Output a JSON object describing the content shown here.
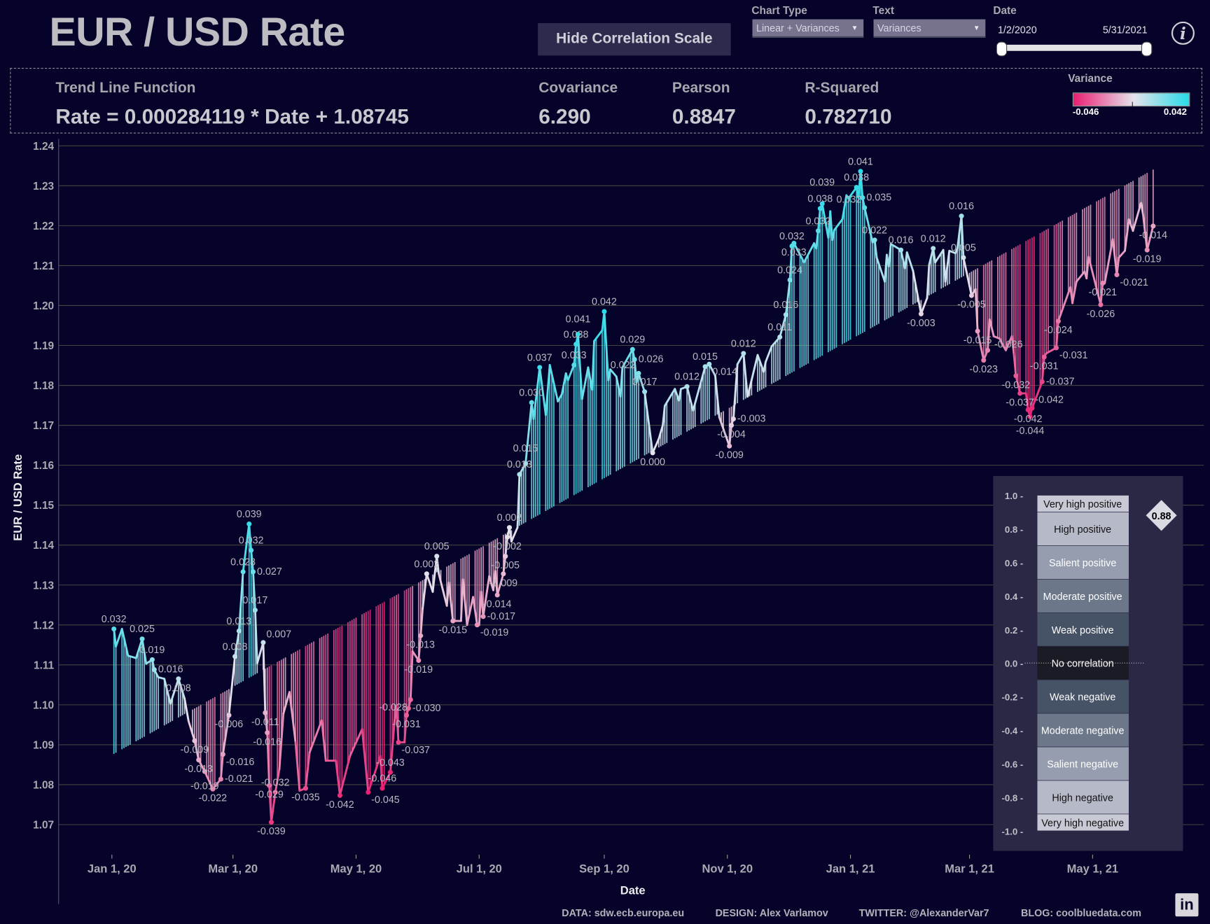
{
  "header": {
    "title": "EUR / USD Rate",
    "hide_button": "Hide Correlation Scale",
    "chart_type_label": "Chart Type",
    "chart_type_value": "Linear + Variances",
    "text_label": "Text",
    "text_value": "Variances",
    "date_label": "Date",
    "date_start": "1/2/2020",
    "date_end": "5/31/2021",
    "info_icon": "i"
  },
  "stats": {
    "trend_label": "Trend Line Function",
    "trend_value": "Rate = 0.000284119 * Date + 1.08745",
    "covariance_label": "Covariance",
    "covariance_value": "6.290",
    "pearson_label": "Pearson",
    "pearson_value": "0.8847",
    "rsquared_label": "R-Squared",
    "rsquared_value": "0.782710",
    "variance_label": "Variance",
    "variance_min": "-0.046",
    "variance_max": "0.042"
  },
  "colors": {
    "negative": "#e91e72",
    "neutral": "#e6e3ec",
    "positive": "#26dbe8",
    "background": "#06032a"
  },
  "footer": {
    "data": "DATA: sdw.ecb.europa.eu",
    "design": "DESIGN: Alex Varlamov",
    "twitter": "TWITTER: @AlexanderVar7",
    "blog": "BLOG: coolbluedata.com",
    "linkedin": "in"
  },
  "chart_data": {
    "type": "line",
    "title": "EUR / USD Rate",
    "xlabel": "Date",
    "ylabel": "EUR / USD Rate",
    "x_unit": "days since Jan 1, 2020",
    "xlim": [
      0,
      516
    ],
    "ylim": [
      1.07,
      1.24
    ],
    "yticks": [
      "1.07",
      "1.08",
      "1.09",
      "1.10",
      "1.11",
      "1.12",
      "1.13",
      "1.14",
      "1.15",
      "1.16",
      "1.17",
      "1.18",
      "1.19",
      "1.20",
      "1.21",
      "1.22",
      "1.23",
      "1.24"
    ],
    "xticks": [
      {
        "day": 0,
        "label": "Jan 1, 20"
      },
      {
        "day": 60,
        "label": "Mar 1, 20"
      },
      {
        "day": 121,
        "label": "May 1, 20"
      },
      {
        "day": 182,
        "label": "Jul 1, 20"
      },
      {
        "day": 244,
        "label": "Sep 1, 20"
      },
      {
        "day": 305,
        "label": "Nov 1, 20"
      },
      {
        "day": 366,
        "label": "Jan 1, 21"
      },
      {
        "day": 425,
        "label": "Mar 1, 21"
      },
      {
        "day": 486,
        "label": "May 1, 21"
      }
    ],
    "grid": true,
    "trend": {
      "slope": 0.000284119,
      "intercept": 1.08745
    },
    "points": [
      [
        1,
        1.119,
        "0.032"
      ],
      [
        2,
        1.1146,
        ""
      ],
      [
        5,
        1.119,
        ""
      ],
      [
        8,
        1.1123,
        ""
      ],
      [
        12,
        1.1117,
        ""
      ],
      [
        15,
        1.1165,
        "0.025"
      ],
      [
        17,
        1.1103,
        ""
      ],
      [
        20,
        1.1113,
        "0.019"
      ],
      [
        21,
        1.1088,
        "0.016"
      ],
      [
        23,
        1.1069,
        ""
      ],
      [
        26,
        1.1065,
        ""
      ],
      [
        29,
        1.1003,
        ""
      ],
      [
        33,
        1.1065,
        "0.008"
      ],
      [
        36,
        1.1016,
        ""
      ],
      [
        38,
        1.0959,
        ""
      ],
      [
        41,
        1.091,
        "-0.009"
      ],
      [
        43,
        1.0862,
        "-0.013"
      ],
      [
        46,
        1.0833,
        "-0.019"
      ],
      [
        50,
        1.0789,
        "-0.022"
      ],
      [
        54,
        1.0814,
        "-0.021"
      ],
      [
        55,
        1.0876,
        "-0.016"
      ],
      [
        58,
        1.0974,
        "-0.006"
      ],
      [
        61,
        1.1121,
        "0.008"
      ],
      [
        63,
        1.1185,
        "0.013"
      ],
      [
        65,
        1.1333,
        "0.028"
      ],
      [
        68,
        1.1453,
        "0.039"
      ],
      [
        69,
        1.1387,
        "0.032"
      ],
      [
        70,
        1.1333,
        "0.027"
      ],
      [
        71,
        1.1237,
        "0.017"
      ],
      [
        72,
        1.1104,
        ""
      ],
      [
        75,
        1.1156,
        "0.007"
      ],
      [
        76,
        1.098,
        "-0.011"
      ],
      [
        77,
        1.093,
        "-0.016"
      ],
      [
        78,
        1.0798,
        "-0.029"
      ],
      [
        79,
        1.0706,
        "-0.039"
      ],
      [
        81,
        1.0781,
        "-0.032"
      ],
      [
        83,
        1.0839,
        ""
      ],
      [
        85,
        1.0978,
        ""
      ],
      [
        88,
        1.1032,
        ""
      ],
      [
        91,
        1.0906,
        ""
      ],
      [
        93,
        1.0785,
        ""
      ],
      [
        96,
        1.0791,
        "-0.035"
      ],
      [
        98,
        1.0881,
        ""
      ],
      [
        104,
        1.0961,
        ""
      ],
      [
        106,
        1.086,
        ""
      ],
      [
        111,
        1.086,
        ""
      ],
      [
        113,
        1.0773,
        "-0.042"
      ],
      [
        118,
        1.0872,
        ""
      ],
      [
        124,
        1.0939,
        ""
      ],
      [
        127,
        1.0781,
        "-0.045"
      ],
      [
        130,
        1.0825,
        ""
      ],
      [
        133,
        1.0872,
        ""
      ],
      [
        134,
        1.0791,
        "-0.046"
      ],
      [
        138,
        1.0831,
        "-0.043"
      ],
      [
        140,
        1.0955,
        ""
      ],
      [
        141,
        1.0997,
        ""
      ],
      [
        142,
        1.0906,
        "-0.037"
      ],
      [
        145,
        1.0906,
        ""
      ],
      [
        146,
        1.0974,
        "-0.031"
      ],
      [
        147,
        1.0991,
        "-0.030"
      ],
      [
        148,
        1.1013,
        "-0.028"
      ],
      [
        149,
        1.1134,
        ""
      ],
      [
        152,
        1.1111,
        "-0.019"
      ],
      [
        153,
        1.1173,
        "-0.013"
      ],
      [
        154,
        1.1241,
        ""
      ],
      [
        156,
        1.1328,
        "0.002"
      ],
      [
        159,
        1.1283,
        ""
      ],
      [
        161,
        1.1372,
        "0.005"
      ],
      [
        162,
        1.1328,
        ""
      ],
      [
        166,
        1.1248,
        ""
      ],
      [
        167,
        1.1306,
        ""
      ],
      [
        169,
        1.121,
        "-0.015"
      ],
      [
        173,
        1.121,
        ""
      ],
      [
        174,
        1.1314,
        ""
      ],
      [
        176,
        1.12,
        ""
      ],
      [
        179,
        1.127,
        ""
      ],
      [
        181,
        1.12,
        "-0.019"
      ],
      [
        182,
        1.12,
        ""
      ],
      [
        183,
        1.1283,
        ""
      ],
      [
        184,
        1.1221,
        "-0.017"
      ],
      [
        187,
        1.1322,
        ""
      ],
      [
        189,
        1.1287,
        ""
      ],
      [
        190,
        1.1335,
        ""
      ],
      [
        191,
        1.1275,
        "-0.014"
      ],
      [
        194,
        1.1328,
        "-0.009"
      ],
      [
        195,
        1.1372,
        "-0.005"
      ],
      [
        196,
        1.142,
        "-0.002"
      ],
      [
        197,
        1.1444,
        "0.002"
      ],
      [
        198,
        1.1409,
        ""
      ],
      [
        201,
        1.1444,
        ""
      ],
      [
        202,
        1.1577,
        "0.013"
      ],
      [
        205,
        1.1604,
        "0.015"
      ],
      [
        208,
        1.1757,
        "0.030"
      ],
      [
        209,
        1.1716,
        ""
      ],
      [
        212,
        1.1845,
        "0.037"
      ],
      [
        215,
        1.1726,
        ""
      ],
      [
        217,
        1.1851,
        ""
      ],
      [
        221,
        1.176,
        ""
      ],
      [
        223,
        1.1778,
        ""
      ],
      [
        225,
        1.183,
        ""
      ],
      [
        226,
        1.1813,
        ""
      ],
      [
        229,
        1.1851,
        "0.033"
      ],
      [
        230,
        1.1903,
        "0.038"
      ],
      [
        231,
        1.1928,
        "0.041"
      ],
      [
        233,
        1.1766,
        ""
      ],
      [
        236,
        1.1845,
        ""
      ],
      [
        238,
        1.1789,
        ""
      ],
      [
        239,
        1.1911,
        ""
      ],
      [
        243,
        1.1938,
        ""
      ],
      [
        244,
        1.1985,
        "0.042"
      ],
      [
        246,
        1.1813,
        ""
      ],
      [
        247,
        1.184,
        ""
      ],
      [
        250,
        1.1822,
        ""
      ],
      [
        252,
        1.1772,
        ""
      ],
      [
        253,
        1.1845,
        ""
      ],
      [
        258,
        1.189,
        "0.029"
      ],
      [
        259,
        1.1865,
        "0.026"
      ],
      [
        260,
        1.1807,
        ""
      ],
      [
        261,
        1.183,
        "0.022"
      ],
      [
        264,
        1.1784,
        "0.017"
      ],
      [
        268,
        1.1631,
        "0.000"
      ],
      [
        271,
        1.1666,
        ""
      ],
      [
        273,
        1.17,
        ""
      ],
      [
        274,
        1.1749,
        ""
      ],
      [
        279,
        1.1791,
        ""
      ],
      [
        281,
        1.1762,
        ""
      ],
      [
        282,
        1.1791,
        ""
      ],
      [
        285,
        1.1797,
        "0.012"
      ],
      [
        288,
        1.1737,
        ""
      ],
      [
        294,
        1.1847,
        "0.015"
      ],
      [
        296,
        1.1853,
        "0.014"
      ],
      [
        299,
        1.1824,
        ""
      ],
      [
        301,
        1.172,
        ""
      ],
      [
        306,
        1.1648,
        "-0.009"
      ],
      [
        307,
        1.17,
        "-0.004"
      ],
      [
        308,
        1.1716,
        "-0.003"
      ],
      [
        310,
        1.1853,
        ""
      ],
      [
        313,
        1.188,
        "0.012"
      ],
      [
        315,
        1.1772,
        ""
      ],
      [
        317,
        1.1813,
        ""
      ],
      [
        320,
        1.1876,
        ""
      ],
      [
        323,
        1.1834,
        ""
      ],
      [
        324,
        1.1859,
        ""
      ],
      [
        327,
        1.1898,
        ""
      ],
      [
        331,
        1.1921,
        "0.011"
      ],
      [
        334,
        1.1977,
        "0.016"
      ],
      [
        336,
        1.2064,
        "0.024"
      ],
      [
        337,
        1.2149,
        "0.032"
      ],
      [
        338,
        1.2156,
        "0.033"
      ],
      [
        343,
        1.2108,
        ""
      ],
      [
        348,
        1.2156,
        ""
      ],
      [
        349,
        1.2143,
        ""
      ],
      [
        350,
        1.2187,
        "0.032"
      ],
      [
        351,
        1.2243,
        "0.038"
      ],
      [
        352,
        1.2255,
        "0.039"
      ],
      [
        355,
        1.217,
        ""
      ],
      [
        356,
        1.2236,
        ""
      ],
      [
        357,
        1.2164,
        ""
      ],
      [
        358,
        1.2189,
        ""
      ],
      [
        362,
        1.2216,
        ""
      ],
      [
        364,
        1.2276,
        ""
      ],
      [
        365,
        1.2268,
        ""
      ],
      [
        369,
        1.2296,
        "0.038"
      ],
      [
        370,
        1.227,
        ""
      ],
      [
        371,
        1.2336,
        "0.041"
      ],
      [
        372,
        1.227,
        "0.035"
      ],
      [
        373,
        1.2245,
        "0.032"
      ],
      [
        377,
        1.2158,
        ""
      ],
      [
        378,
        1.2164,
        "0.022"
      ],
      [
        379,
        1.212,
        ""
      ],
      [
        383,
        1.206,
        ""
      ],
      [
        384,
        1.2127,
        ""
      ],
      [
        385,
        1.2098,
        ""
      ],
      [
        386,
        1.2154,
        ""
      ],
      [
        391,
        1.2139,
        "0.016"
      ],
      [
        393,
        1.2093,
        ""
      ],
      [
        394,
        1.2133,
        ""
      ],
      [
        397,
        1.2087,
        ""
      ],
      [
        401,
        1.1979,
        "-0.003"
      ],
      [
        404,
        1.2019,
        ""
      ],
      [
        405,
        1.2102,
        ""
      ],
      [
        407,
        1.2143,
        "0.012"
      ],
      [
        408,
        1.2108,
        ""
      ],
      [
        412,
        1.2139,
        ""
      ],
      [
        413,
        1.206,
        ""
      ],
      [
        415,
        1.2137,
        ""
      ],
      [
        418,
        1.2131,
        ""
      ],
      [
        419,
        1.2143,
        ""
      ],
      [
        421,
        1.2224,
        "0.016"
      ],
      [
        422,
        1.212,
        "0.005"
      ],
      [
        426,
        1.2025,
        "-0.005"
      ],
      [
        428,
        1.2041,
        ""
      ],
      [
        429,
        1.1936,
        "-0.015"
      ],
      [
        432,
        1.1863,
        "-0.023"
      ],
      [
        434,
        1.1888,
        "-0.026"
      ],
      [
        435,
        1.1965,
        ""
      ],
      [
        437,
        1.1923,
        ""
      ],
      [
        440,
        1.1917,
        ""
      ],
      [
        441,
        1.1905,
        ""
      ],
      [
        443,
        1.1888,
        ""
      ],
      [
        446,
        1.1923,
        ""
      ],
      [
        447,
        1.1878,
        ""
      ],
      [
        448,
        1.1824,
        "-0.032"
      ],
      [
        450,
        1.178,
        "-0.037"
      ],
      [
        453,
        1.178,
        ""
      ],
      [
        454,
        1.1739,
        "-0.042"
      ],
      [
        455,
        1.1722,
        "-0.044"
      ],
      [
        456,
        1.1743,
        "-0.042"
      ],
      [
        461,
        1.1809,
        "-0.037"
      ],
      [
        462,
        1.1871,
        "-0.031"
      ],
      [
        463,
        1.188,
        ""
      ],
      [
        468,
        1.1894,
        "-0.031"
      ],
      [
        469,
        1.1961,
        "-0.024"
      ],
      [
        475,
        1.2046,
        ""
      ],
      [
        476,
        1.2006,
        ""
      ],
      [
        478,
        1.206,
        ""
      ],
      [
        482,
        1.2085,
        ""
      ],
      [
        483,
        1.2068,
        ""
      ],
      [
        484,
        1.2122,
        ""
      ],
      [
        490,
        1.2002,
        "-0.026"
      ],
      [
        491,
        1.2056,
        "-0.021"
      ],
      [
        492,
        1.2056,
        ""
      ],
      [
        496,
        1.2166,
        ""
      ],
      [
        498,
        1.2077,
        "-0.021"
      ],
      [
        499,
        1.212,
        ""
      ],
      [
        502,
        1.2137,
        ""
      ],
      [
        504,
        1.2216,
        ""
      ],
      [
        506,
        1.2187,
        ""
      ],
      [
        510,
        1.2257,
        ""
      ],
      [
        511,
        1.2228,
        ""
      ],
      [
        513,
        1.2139,
        "-0.019"
      ],
      [
        516,
        1.2199,
        "-0.014"
      ]
    ]
  },
  "correlation_scale": {
    "ticks": [
      "1.0",
      "0.8",
      "0.6",
      "0.4",
      "0.2",
      "0.0",
      "-0.2",
      "-0.4",
      "-0.6",
      "-0.8",
      "-1.0"
    ],
    "levels": [
      {
        "label": "Very high positive",
        "from": 0.9,
        "to": 1.0,
        "color": "#c7c9d4",
        "text": "#111"
      },
      {
        "label": "High positive",
        "from": 0.7,
        "to": 0.9,
        "color": "#b6b9c7",
        "text": "#111"
      },
      {
        "label": "Salient positive",
        "from": 0.5,
        "to": 0.7,
        "color": "#969dae",
        "text": "#fff"
      },
      {
        "label": "Moderate positive",
        "from": 0.3,
        "to": 0.5,
        "color": "#6c7789",
        "text": "#fff"
      },
      {
        "label": "Weak positive",
        "from": 0.1,
        "to": 0.3,
        "color": "#465266",
        "text": "#fff"
      },
      {
        "label": "No correlation",
        "from": -0.1,
        "to": 0.1,
        "color": "#1b1b25",
        "text": "#fff"
      },
      {
        "label": "Weak negative",
        "from": -0.3,
        "to": -0.1,
        "color": "#465266",
        "text": "#fff"
      },
      {
        "label": "Moderate negative",
        "from": -0.5,
        "to": -0.3,
        "color": "#6c7789",
        "text": "#fff"
      },
      {
        "label": "Salient negative",
        "from": -0.7,
        "to": -0.5,
        "color": "#969dae",
        "text": "#fff"
      },
      {
        "label": "High negative",
        "from": -0.9,
        "to": -0.7,
        "color": "#b6b9c7",
        "text": "#111"
      },
      {
        "label": "Very high negative",
        "from": -1.0,
        "to": -0.9,
        "color": "#c7c9d4",
        "text": "#111"
      }
    ],
    "marker_value": 0.88,
    "marker_label": "0.88"
  }
}
